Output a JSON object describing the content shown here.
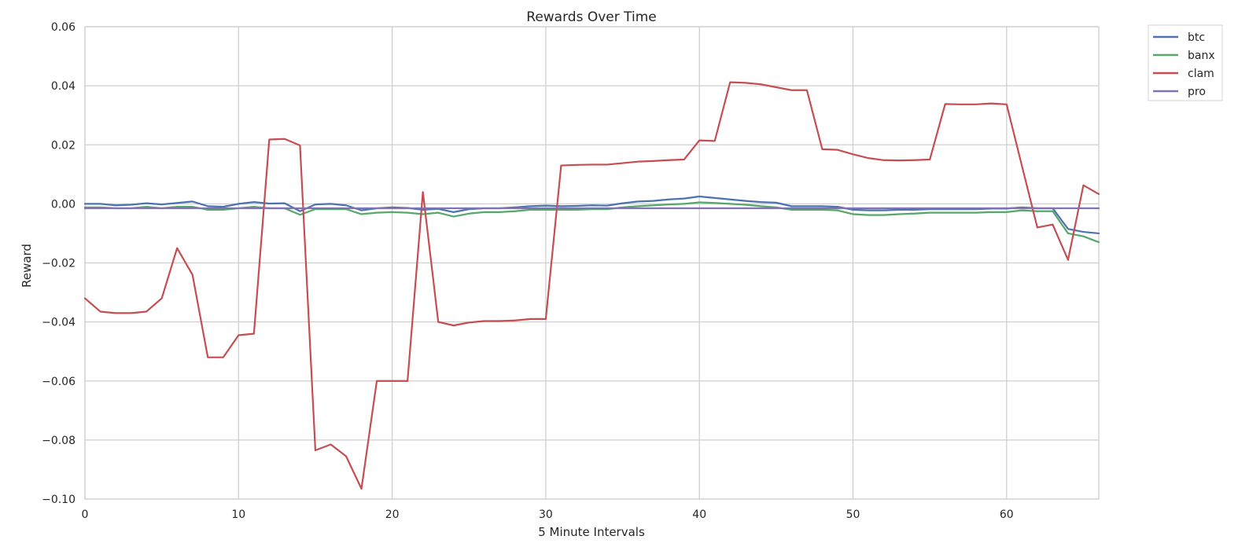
{
  "chart_data": {
    "type": "line",
    "title": "Rewards Over Time",
    "xlabel": "5 Minute Intervals",
    "ylabel": "Reward",
    "xlim": [
      0,
      66
    ],
    "ylim": [
      -0.1,
      0.06
    ],
    "xticks": [
      0,
      10,
      20,
      30,
      40,
      50,
      60
    ],
    "xtick_labels": [
      "0",
      "10",
      "20",
      "30",
      "40",
      "50",
      "60"
    ],
    "yticks": [
      -0.1,
      -0.08,
      -0.06,
      -0.04,
      -0.02,
      0.0,
      0.02,
      0.04,
      0.06
    ],
    "ytick_labels": [
      "−0.10",
      "−0.08",
      "−0.06",
      "−0.04",
      "−0.02",
      "0.00",
      "0.02",
      "0.04",
      "0.06"
    ],
    "grid": true,
    "legend_position": "outside-top-right",
    "series": [
      {
        "name": "btc",
        "color": "#4c72b0",
        "values": [
          0.0,
          0.0,
          -0.0005,
          -0.0003,
          0.0002,
          -0.0002,
          0.0003,
          0.0008,
          -0.0008,
          -0.001,
          0.0,
          0.0006,
          0.0001,
          0.0002,
          -0.0025,
          -0.0002,
          0.0,
          -0.0005,
          -0.0022,
          -0.0015,
          -0.0012,
          -0.0014,
          -0.002,
          -0.0017,
          -0.0028,
          -0.0018,
          -0.0015,
          -0.0015,
          -0.0012,
          -0.0008,
          -0.0006,
          -0.0008,
          -0.0007,
          -0.0005,
          -0.0006,
          0.0002,
          0.0008,
          0.001,
          0.0015,
          0.0018,
          0.0025,
          0.002,
          0.0015,
          0.001,
          0.0006,
          0.0004,
          -0.0008,
          -0.0008,
          -0.0008,
          -0.001,
          -0.002,
          -0.0022,
          -0.0022,
          -0.002,
          -0.002,
          -0.0018,
          -0.0018,
          -0.0018,
          -0.0018,
          -0.0016,
          -0.0016,
          -0.0012,
          -0.0015,
          -0.0015,
          -0.0085,
          -0.0095,
          -0.01
        ]
      },
      {
        "name": "banx",
        "color": "#55a868",
        "values": [
          -0.0012,
          -0.0012,
          -0.0015,
          -0.0015,
          -0.001,
          -0.0015,
          -0.001,
          -0.001,
          -0.002,
          -0.002,
          -0.0015,
          -0.001,
          -0.0015,
          -0.0015,
          -0.0037,
          -0.0018,
          -0.0018,
          -0.0018,
          -0.0035,
          -0.003,
          -0.0028,
          -0.003,
          -0.0035,
          -0.003,
          -0.0043,
          -0.0033,
          -0.0028,
          -0.0028,
          -0.0025,
          -0.002,
          -0.002,
          -0.002,
          -0.002,
          -0.0018,
          -0.0018,
          -0.0012,
          -0.0008,
          -0.0005,
          -0.0002,
          0.0,
          0.0005,
          0.0003,
          0.0,
          -0.0003,
          -0.0008,
          -0.0012,
          -0.002,
          -0.002,
          -0.002,
          -0.0022,
          -0.0035,
          -0.0038,
          -0.0038,
          -0.0035,
          -0.0033,
          -0.003,
          -0.003,
          -0.003,
          -0.003,
          -0.0028,
          -0.0028,
          -0.0022,
          -0.0025,
          -0.0025,
          -0.01,
          -0.011,
          -0.013
        ]
      },
      {
        "name": "clam",
        "color": "#c44e52",
        "values": [
          -0.032,
          -0.0365,
          -0.037,
          -0.037,
          -0.0365,
          -0.032,
          -0.015,
          -0.024,
          -0.052,
          -0.052,
          -0.0445,
          -0.044,
          0.0218,
          0.022,
          0.0198,
          -0.0835,
          -0.0815,
          -0.0855,
          -0.0965,
          -0.06,
          -0.06,
          -0.06,
          0.004,
          -0.04,
          -0.0412,
          -0.0402,
          -0.0397,
          -0.0397,
          -0.0395,
          -0.039,
          -0.039,
          0.013,
          0.0132,
          0.0133,
          0.0133,
          0.0138,
          0.0143,
          0.0145,
          0.0148,
          0.015,
          0.0215,
          0.0213,
          0.0412,
          0.041,
          0.0405,
          0.0395,
          0.0385,
          0.0385,
          0.0185,
          0.0183,
          0.0168,
          0.0155,
          0.0148,
          0.0147,
          0.0148,
          0.015,
          0.0338,
          0.0337,
          0.0337,
          0.034,
          0.0337,
          0.0128,
          -0.008,
          -0.007,
          -0.019,
          0.0063,
          0.0033
        ]
      },
      {
        "name": "pro",
        "color": "#8172b2",
        "values": [
          -0.0015,
          -0.0015,
          -0.0015,
          -0.0015,
          -0.0015,
          -0.0015,
          -0.0015,
          -0.0015,
          -0.0015,
          -0.0015,
          -0.0015,
          -0.0015,
          -0.0015,
          -0.0015,
          -0.0015,
          -0.0015,
          -0.0015,
          -0.0015,
          -0.0015,
          -0.0015,
          -0.0015,
          -0.0015,
          -0.0015,
          -0.0015,
          -0.0015,
          -0.0015,
          -0.0015,
          -0.0015,
          -0.0015,
          -0.0015,
          -0.0015,
          -0.0015,
          -0.0015,
          -0.0015,
          -0.0015,
          -0.0015,
          -0.0015,
          -0.0015,
          -0.0015,
          -0.0015,
          -0.0015,
          -0.0015,
          -0.0015,
          -0.0015,
          -0.0015,
          -0.0015,
          -0.0015,
          -0.0015,
          -0.0015,
          -0.0015,
          -0.0015,
          -0.0015,
          -0.0015,
          -0.0015,
          -0.0015,
          -0.0015,
          -0.0015,
          -0.0015,
          -0.0015,
          -0.0015,
          -0.0015,
          -0.0015,
          -0.0015,
          -0.0015,
          -0.0015,
          -0.0015,
          -0.0015
        ]
      }
    ]
  }
}
